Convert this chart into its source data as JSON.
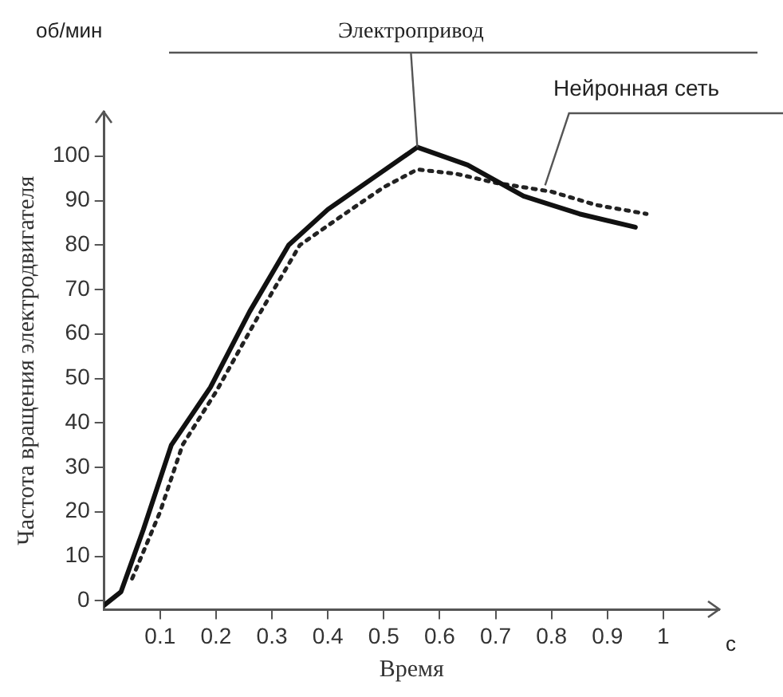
{
  "chart_data": {
    "type": "line",
    "xlabel": "Время",
    "ylabel": "Частота вращения электродвигателя",
    "annotations": [
      "об/мин",
      "с"
    ],
    "xlim": [
      0,
      1.1
    ],
    "xticks": [
      0.1,
      0.2,
      0.3,
      0.4,
      0.5,
      0.6,
      0.7,
      0.8,
      0.9,
      1
    ],
    "ylim": [
      -2,
      110
    ],
    "yticks": [
      0,
      10,
      20,
      30,
      40,
      50,
      60,
      70,
      80,
      90,
      100
    ],
    "grid": false,
    "legend": false,
    "marker": "none",
    "series": [
      {
        "name": "Электропривод",
        "color": "#111111",
        "line_style": "solid",
        "x": [
          0,
          0.03,
          0.07,
          0.12,
          0.19,
          0.26,
          0.33,
          0.4,
          0.48,
          0.56,
          0.65,
          0.75,
          0.85,
          0.95
        ],
        "values": [
          -1,
          2,
          16,
          35,
          48,
          65,
          80,
          88,
          95,
          102,
          98,
          91,
          87,
          84
        ]
      },
      {
        "name": "Нейронная сеть",
        "color": "#222222",
        "line_style": "dotted",
        "x": [
          0.05,
          0.1,
          0.14,
          0.2,
          0.28,
          0.35,
          0.43,
          0.5,
          0.56,
          0.63,
          0.7,
          0.8,
          0.88,
          0.97
        ],
        "values": [
          5,
          20,
          35,
          47,
          65,
          80,
          87,
          93,
          97,
          96,
          94,
          92,
          89,
          87
        ]
      }
    ]
  }
}
